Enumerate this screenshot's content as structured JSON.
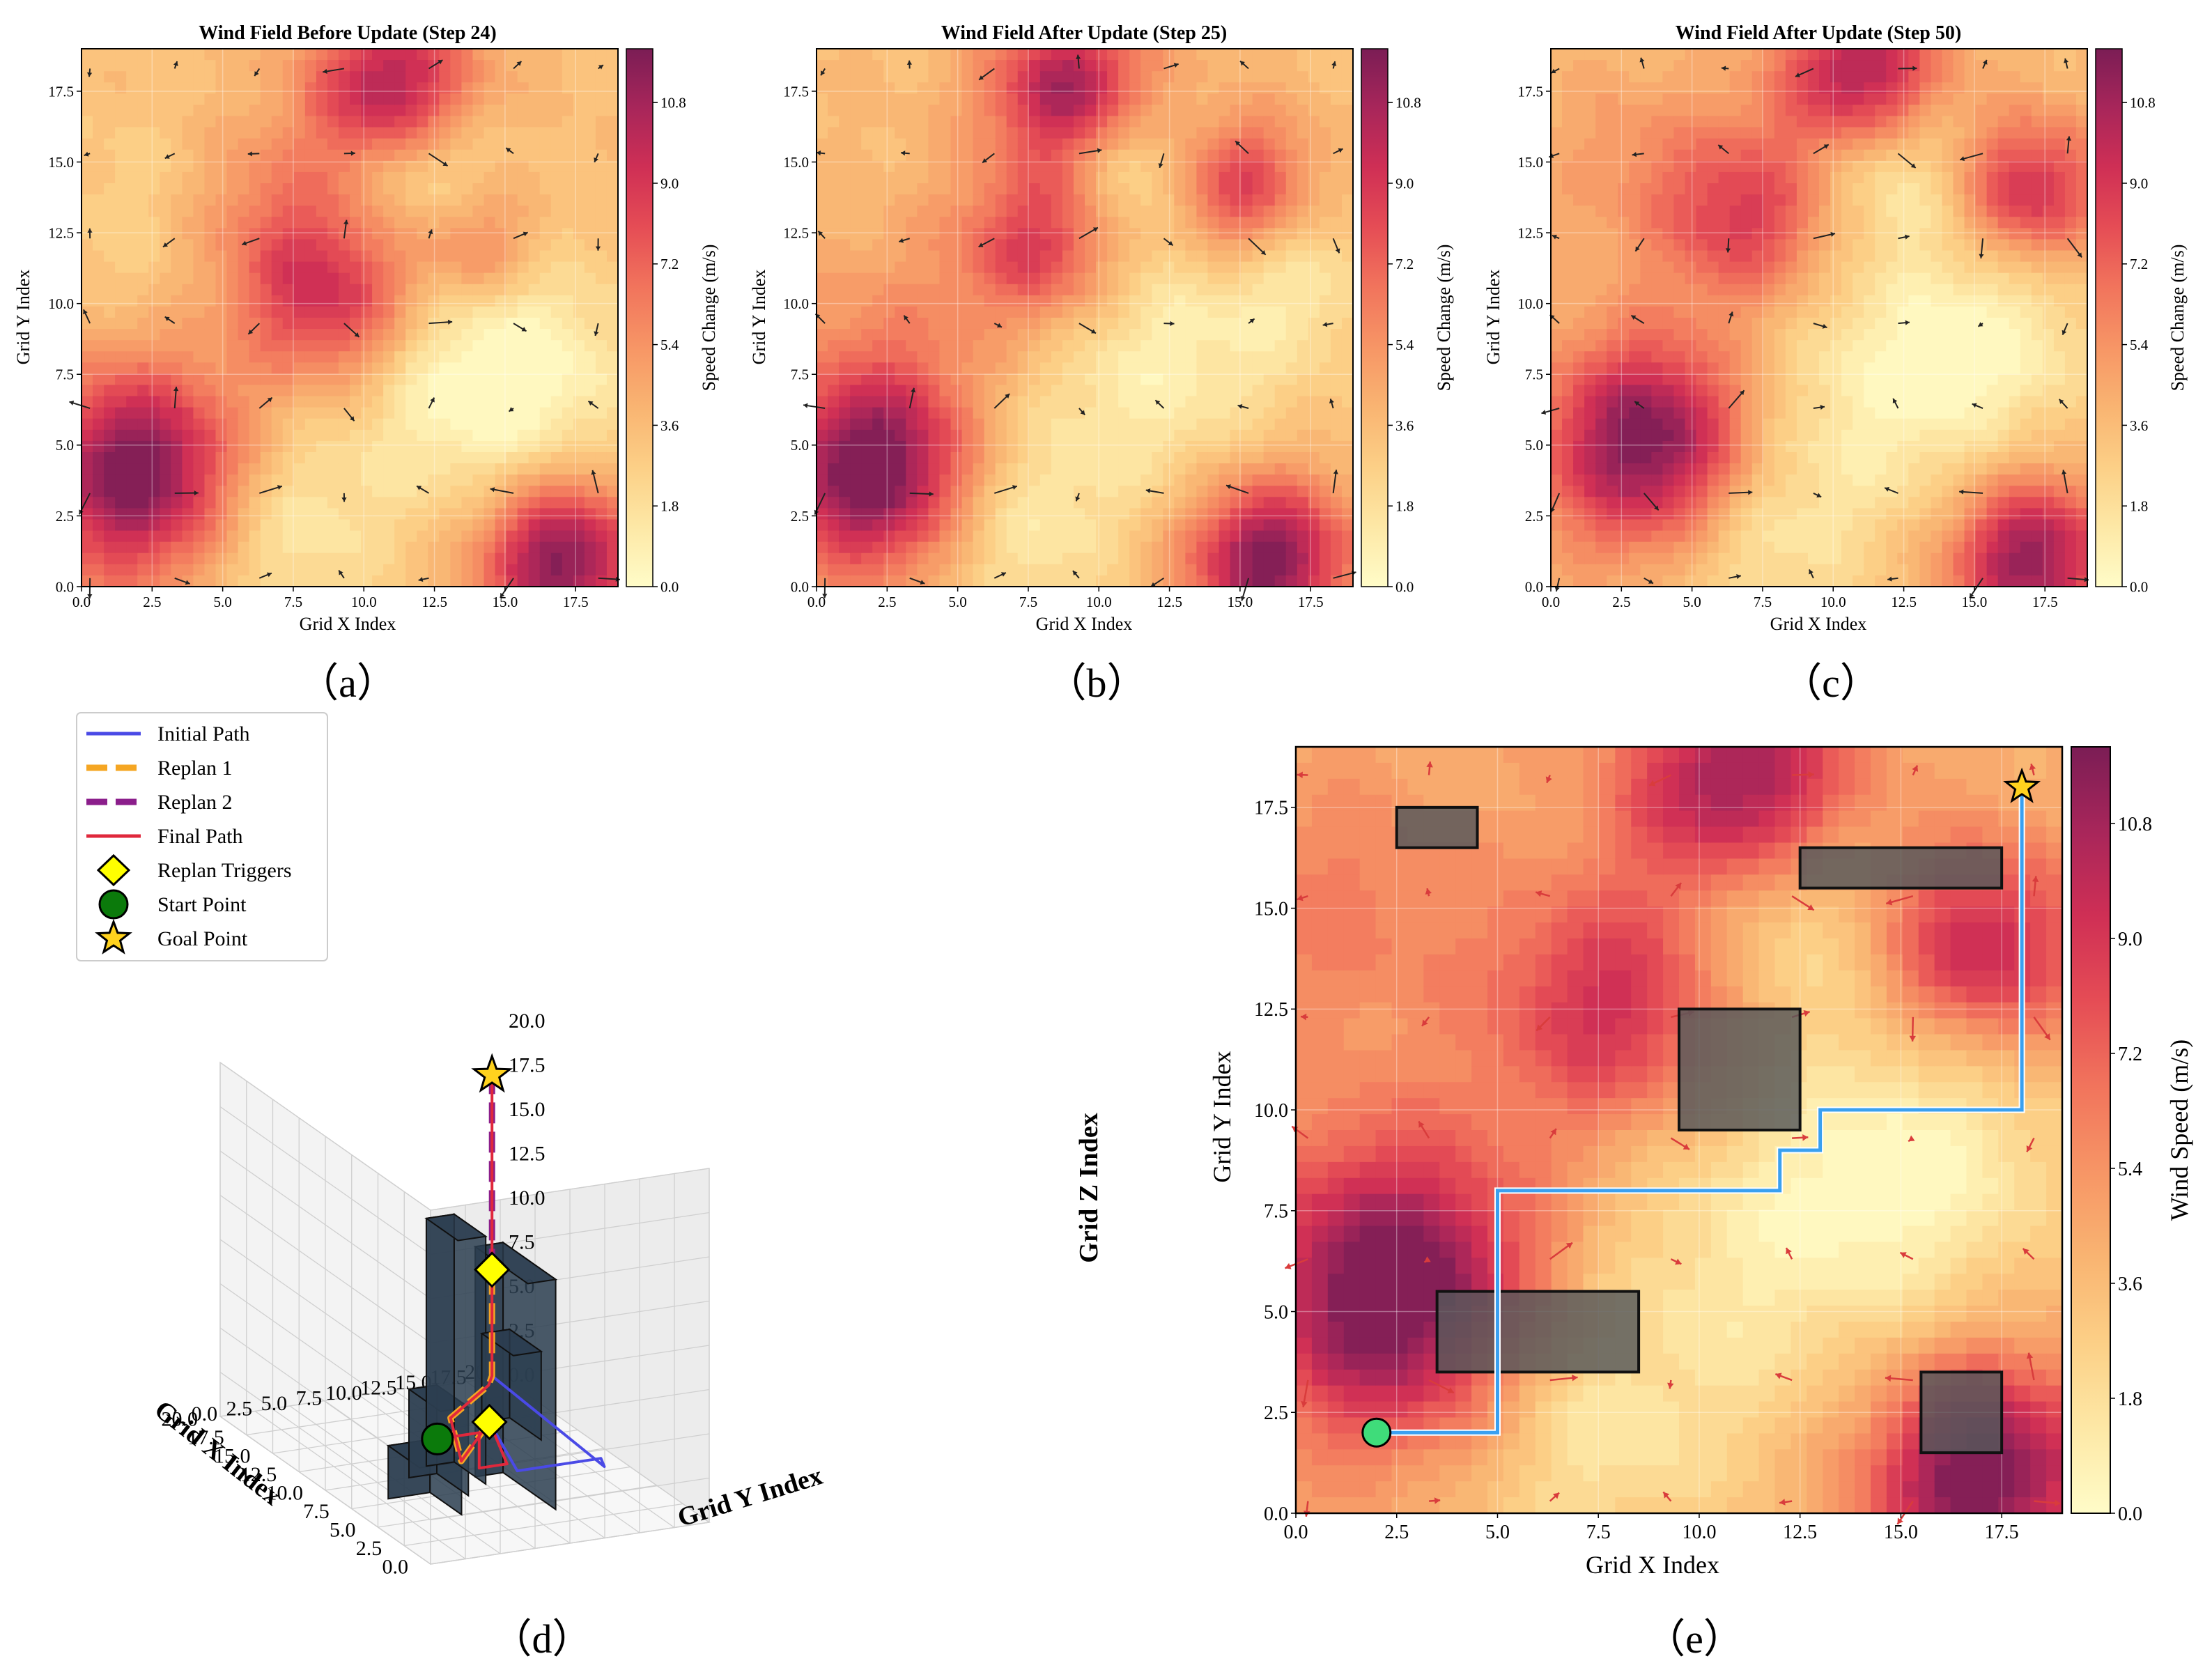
{
  "figure": {
    "panel_labels": [
      "（a）",
      "（b）",
      "（c）",
      "（d）",
      "（e）"
    ]
  },
  "colors": {
    "cmap": [
      "#fffcc8",
      "#fde8a6",
      "#fcd087",
      "#f9b572",
      "#f79766",
      "#f1735c",
      "#e54c55",
      "#cf2f55",
      "#a8265a",
      "#7b1d55"
    ],
    "initial": "#4a4ae6",
    "replan1": "#f5a623",
    "replan2": "#8b1e8b",
    "final": "#e0283c",
    "trigger": "#ffff00",
    "start": "#0b7a0b",
    "goal": "#ffd21e",
    "building": "#2c3e50",
    "epath": "#3aa0f0",
    "estart": "#3fdc7a",
    "obstacle": "#55585a"
  },
  "chart_data": [
    {
      "id": "a",
      "type": "heatmap",
      "title": "Wind Field Before Update (Step 24)",
      "xlabel": "Grid X Index",
      "ylabel": "Grid Y Index",
      "xlim": [
        0,
        19
      ],
      "ylim": [
        0,
        19
      ],
      "xticks": [
        "0.0",
        "2.5",
        "5.0",
        "7.5",
        "10.0",
        "12.5",
        "15.0",
        "17.5"
      ],
      "yticks": [
        "0.0",
        "2.5",
        "5.0",
        "7.5",
        "10.0",
        "12.5",
        "15.0",
        "17.5"
      ],
      "colorbar": {
        "label": "Speed Change (m/s)",
        "range": [
          0,
          12
        ],
        "ticks": [
          "0.0",
          "1.8",
          "3.6",
          "5.4",
          "7.2",
          "9.0",
          "10.8"
        ]
      },
      "base": 3.6,
      "hotspots": [
        [
          2,
          4,
          9,
          2.6
        ],
        [
          9,
          10,
          6,
          2.2
        ],
        [
          11,
          17.5,
          7.5,
          2.0
        ],
        [
          14,
          12,
          3.5,
          1.6
        ],
        [
          17,
          1,
          8.5,
          2.0
        ],
        [
          6.5,
          13,
          3,
          2.5
        ]
      ],
      "coldspots": [
        [
          12,
          15,
          3,
          1.8
        ],
        [
          13,
          8,
          2.8,
          3.5
        ],
        [
          7,
          2,
          2.5,
          2.5
        ],
        [
          3,
          13,
          1.5,
          3
        ],
        [
          16,
          7,
          2,
          3
        ]
      ]
    },
    {
      "id": "b",
      "type": "heatmap",
      "title": "Wind Field After Update (Step 25)",
      "xlabel": "Grid X Index",
      "ylabel": "Grid Y Index",
      "xlim": [
        0,
        19
      ],
      "ylim": [
        0,
        19
      ],
      "xticks": [
        "0.0",
        "2.5",
        "5.0",
        "7.5",
        "10.0",
        "12.5",
        "15.0",
        "17.5"
      ],
      "yticks": [
        "0.0",
        "2.5",
        "5.0",
        "7.5",
        "10.0",
        "12.5",
        "15.0",
        "17.5"
      ],
      "colorbar": {
        "label": "Speed Change (m/s)",
        "range": [
          0,
          12
        ],
        "ticks": [
          "0.0",
          "1.8",
          "3.6",
          "5.4",
          "7.2",
          "9.0",
          "10.8"
        ]
      },
      "base": 3.6,
      "hotspots": [
        [
          2,
          4,
          9,
          2.5
        ],
        [
          8,
          12,
          5.5,
          2.0
        ],
        [
          9,
          17.5,
          7.5,
          2.0
        ],
        [
          15,
          14,
          5.5,
          1.8
        ],
        [
          16,
          1,
          8.5,
          2.0
        ],
        [
          3,
          9,
          1.5,
          3
        ]
      ],
      "coldspots": [
        [
          11,
          15,
          3,
          1.8
        ],
        [
          12,
          8,
          2.8,
          3.5
        ],
        [
          7,
          2,
          2.5,
          2.5
        ],
        [
          17,
          11,
          2,
          2
        ]
      ]
    },
    {
      "id": "c",
      "type": "heatmap",
      "title": "Wind Field After Update (Step 50)",
      "xlabel": "Grid X Index",
      "ylabel": "Grid Y Index",
      "xlim": [
        0,
        19
      ],
      "ylim": [
        0,
        19
      ],
      "xticks": [
        "0.0",
        "2.5",
        "5.0",
        "7.5",
        "10.0",
        "12.5",
        "15.0",
        "17.5"
      ],
      "yticks": [
        "0.0",
        "2.5",
        "5.0",
        "7.5",
        "10.0",
        "12.5",
        "15.0",
        "17.5"
      ],
      "colorbar": {
        "label": "Speed Change (m/s)",
        "range": [
          0,
          12
        ],
        "ticks": [
          "0.0",
          "1.8",
          "3.6",
          "5.4",
          "7.2",
          "9.0",
          "10.8"
        ]
      },
      "base": 3.6,
      "hotspots": [
        [
          3.5,
          5,
          9,
          2.6
        ],
        [
          7,
          13,
          5,
          2.2
        ],
        [
          11,
          18,
          7.5,
          2.0
        ],
        [
          17,
          14,
          6,
          1.8
        ],
        [
          17,
          1,
          8,
          2.0
        ],
        [
          3,
          15,
          1.5,
          2.5
        ]
      ],
      "coldspots": [
        [
          12,
          15,
          3,
          2.0
        ],
        [
          12,
          7,
          2.8,
          3.5
        ],
        [
          7,
          2,
          2.5,
          2.5
        ],
        [
          16,
          9,
          2,
          2.5
        ]
      ]
    },
    {
      "id": "d",
      "type": "line3d",
      "xlabel": "Grid X Index",
      "ylabel": "Grid Y Index",
      "zlabel": "Grid Z Index",
      "xlim": [
        0,
        20
      ],
      "ylim": [
        0,
        20
      ],
      "zlim": [
        0,
        20
      ],
      "xticks": [
        "0.0",
        "2.5",
        "5.0",
        "7.5",
        "10.0",
        "12.5",
        "15.0",
        "17.5",
        "20.0"
      ],
      "yticks": [
        "0.0",
        "2.5",
        "5.0",
        "7.5",
        "10.0",
        "12.5",
        "15.0",
        "17.5",
        "20.0"
      ],
      "zticks": [
        "0.0",
        "2.5",
        "5.0",
        "7.5",
        "10.0",
        "12.5",
        "15.0",
        "17.5",
        "20.0"
      ],
      "legend": [
        "Initial Path",
        "Replan 1",
        "Replan 2",
        "Final Path",
        "Replan Triggers",
        "Start Point",
        "Goal Point"
      ],
      "start": [
        2,
        2,
        6
      ],
      "goal": [
        18,
        18,
        18
      ],
      "triggers": [
        [
          5,
          8,
          5
        ],
        [
          18,
          18,
          7
        ]
      ],
      "buildings": [
        [
          5,
          8,
          3,
          6,
          0,
          3
        ],
        [
          7,
          10,
          6,
          8,
          0,
          5
        ],
        [
          8,
          11,
          8,
          10,
          0,
          14
        ],
        [
          4,
          9,
          10,
          12,
          0,
          13
        ],
        [
          12,
          15,
          15,
          17,
          0,
          5
        ]
      ],
      "initial_path": [
        [
          5,
          8,
          5
        ],
        [
          5,
          10,
          2
        ],
        [
          5,
          14,
          2
        ],
        [
          5,
          16,
          2
        ],
        [
          6,
          17,
          1
        ],
        [
          18,
          18,
          1
        ]
      ],
      "replan1_path": [
        [
          5,
          8,
          5
        ],
        [
          9,
          9,
          1
        ],
        [
          14,
          12,
          1
        ],
        [
          17,
          17,
          1
        ],
        [
          18,
          18,
          1
        ],
        [
          18,
          18,
          7
        ]
      ],
      "replan2_path": [
        [
          18,
          18,
          7
        ],
        [
          18,
          18,
          18
        ]
      ],
      "final_path": [
        [
          2,
          2,
          6
        ],
        [
          2,
          5,
          6
        ],
        [
          2,
          5,
          4
        ],
        [
          2,
          6,
          4
        ],
        [
          2,
          7,
          4
        ],
        [
          5,
          8,
          5
        ],
        [
          9,
          9,
          1
        ],
        [
          14,
          12,
          1
        ],
        [
          17,
          17,
          1
        ],
        [
          18,
          18,
          1
        ],
        [
          18,
          18,
          18
        ]
      ]
    },
    {
      "id": "e",
      "type": "heatmap",
      "xlabel": "Grid X Index",
      "ylabel": "Grid Y Index",
      "xlim": [
        0,
        19
      ],
      "ylim": [
        0,
        19
      ],
      "xticks": [
        "0.0",
        "2.5",
        "5.0",
        "7.5",
        "10.0",
        "12.5",
        "15.0",
        "17.5"
      ],
      "yticks": [
        "0.0",
        "2.5",
        "5.0",
        "7.5",
        "10.0",
        "12.5",
        "15.0",
        "17.5"
      ],
      "colorbar": {
        "label": "Wind Speed (m/s)",
        "range": [
          0,
          12
        ],
        "ticks": [
          "0.0",
          "1.8",
          "3.6",
          "5.4",
          "7.2",
          "9.0",
          "10.8"
        ]
      },
      "base": 4.2,
      "hotspots": [
        [
          2.5,
          5.5,
          9,
          2.6
        ],
        [
          8,
          12.5,
          5.5,
          2.2
        ],
        [
          11,
          18,
          7.5,
          2.0
        ],
        [
          17,
          14,
          6,
          1.8
        ],
        [
          17,
          1,
          8.5,
          2.0
        ],
        [
          1,
          15,
          2,
          2.5
        ]
      ],
      "coldspots": [
        [
          12,
          15,
          3,
          2.0
        ],
        [
          12,
          7,
          3,
          3.5
        ],
        [
          7,
          2,
          2.8,
          2.5
        ],
        [
          16,
          9,
          2.5,
          2.5
        ]
      ],
      "obstacles": [
        [
          2.5,
          16.5,
          2,
          1
        ],
        [
          12.5,
          15.5,
          5,
          1
        ],
        [
          9.5,
          9.5,
          3,
          3
        ],
        [
          3.5,
          3.5,
          5,
          2
        ],
        [
          15.5,
          1.5,
          2,
          2
        ]
      ],
      "path": [
        [
          2,
          2
        ],
        [
          5,
          2
        ],
        [
          5,
          8
        ],
        [
          12,
          8
        ],
        [
          12,
          9
        ],
        [
          13,
          9
        ],
        [
          13,
          10
        ],
        [
          18,
          10
        ],
        [
          18,
          18
        ]
      ],
      "start": [
        2,
        2
      ],
      "goal": [
        18,
        18
      ]
    }
  ]
}
